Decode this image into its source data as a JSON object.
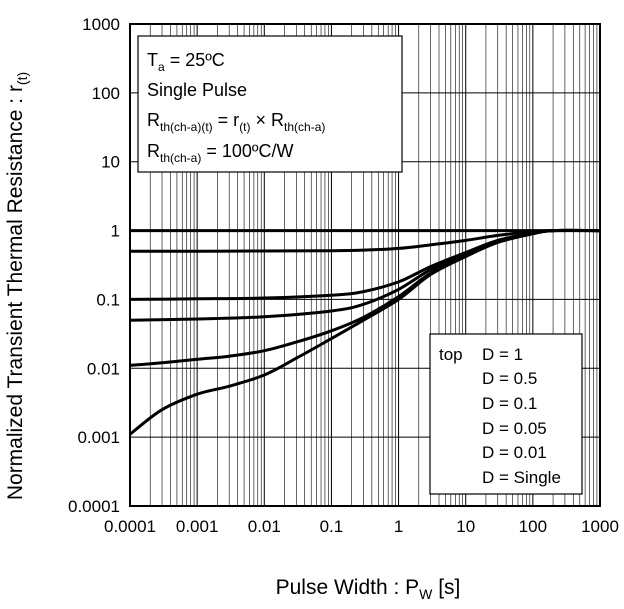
{
  "chart_data": {
    "type": "line",
    "xscale": "log",
    "yscale": "log",
    "xlim": [
      0.0001,
      1000
    ],
    "ylim": [
      0.0001,
      1000
    ],
    "grid": true,
    "x_ticks": [
      "0.0001",
      "0.001",
      "0.01",
      "0.1",
      "1",
      "10",
      "100",
      "1000"
    ],
    "y_ticks": [
      "1000",
      "100",
      "10",
      "1",
      "0.1",
      "0.01",
      "0.001",
      "0.0001"
    ],
    "xlabel": {
      "main": "Pulse Width : P",
      "sub": "W",
      "unit": " [s]"
    },
    "ylabel": {
      "main": "Normalized Transient Thermal Resistance : r",
      "sub": "(t)"
    },
    "conditions": {
      "line1": {
        "a": "T",
        "a_sub": "a",
        "b": " = 25ºC"
      },
      "line2": "Single Pulse",
      "line3": {
        "a": "R",
        "a_sub": "th(ch-a)(t)",
        "b": " = r",
        "b_sub": "(t)",
        "c": " × R",
        "c_sub": "th(ch-a)"
      },
      "line4": {
        "a": "R",
        "a_sub": "th(ch-a)",
        "b": " = 100ºC/W"
      }
    },
    "legend": {
      "position": "bottom-right",
      "prefix": "top",
      "entries": [
        "D = 1",
        "D = 0.5",
        "D = 0.1",
        "D = 0.05",
        "D = 0.01",
        "D = Single"
      ]
    },
    "series": [
      {
        "name": "D = 1",
        "x": [
          0.0001,
          0.01,
          1,
          100,
          1000
        ],
        "y": [
          1,
          1,
          1,
          1,
          1
        ]
      },
      {
        "name": "D = 0.5",
        "x": [
          0.0001,
          0.001,
          0.01,
          0.1,
          0.3,
          1,
          3,
          10,
          30,
          100,
          200,
          1000
        ],
        "y": [
          0.5,
          0.5,
          0.505,
          0.51,
          0.52,
          0.55,
          0.62,
          0.72,
          0.85,
          0.96,
          1,
          1
        ]
      },
      {
        "name": "D = 0.1",
        "x": [
          0.0001,
          0.001,
          0.01,
          0.1,
          0.3,
          1,
          3,
          10,
          30,
          100,
          200,
          1000
        ],
        "y": [
          0.1,
          0.102,
          0.105,
          0.115,
          0.13,
          0.18,
          0.3,
          0.48,
          0.72,
          0.92,
          1,
          1
        ]
      },
      {
        "name": "D = 0.05",
        "x": [
          0.0001,
          0.001,
          0.01,
          0.1,
          0.3,
          1,
          3,
          10,
          30,
          100,
          200,
          1000
        ],
        "y": [
          0.05,
          0.052,
          0.056,
          0.068,
          0.085,
          0.14,
          0.27,
          0.45,
          0.7,
          0.91,
          1,
          1
        ]
      },
      {
        "name": "D = 0.01",
        "x": [
          0.0001,
          0.0003,
          0.001,
          0.003,
          0.01,
          0.03,
          0.1,
          0.3,
          1,
          3,
          10,
          30,
          100,
          200,
          1000
        ],
        "y": [
          0.011,
          0.012,
          0.0135,
          0.015,
          0.018,
          0.024,
          0.035,
          0.055,
          0.11,
          0.24,
          0.43,
          0.68,
          0.9,
          1,
          1
        ]
      },
      {
        "name": "D = Single",
        "x": [
          0.0001,
          0.0003,
          0.001,
          0.003,
          0.01,
          0.03,
          0.1,
          0.3,
          1,
          3,
          10,
          30,
          100,
          200,
          1000
        ],
        "y": [
          0.0011,
          0.0025,
          0.0042,
          0.0055,
          0.008,
          0.014,
          0.027,
          0.05,
          0.1,
          0.23,
          0.42,
          0.67,
          0.9,
          1,
          1
        ]
      }
    ]
  }
}
